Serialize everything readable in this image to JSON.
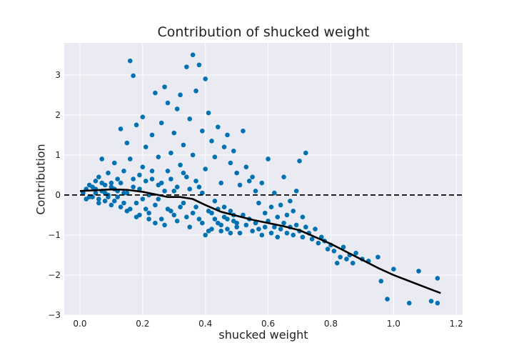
{
  "chart_data": {
    "type": "scatter",
    "title": "Contribution of shucked weight",
    "xlabel": "shucked weight",
    "ylabel": "Contribution",
    "xlim": [
      -0.05,
      1.22
    ],
    "ylim": [
      -3.0,
      3.8
    ],
    "xticks": [
      "0.0",
      "0.2",
      "0.4",
      "0.6",
      "0.8",
      "1.0",
      "1.2"
    ],
    "yticks": [
      "−3",
      "−2",
      "−1",
      "0",
      "1",
      "2",
      "3"
    ],
    "grid": true,
    "background": "#eaeaf2",
    "point_color": "#0072b2",
    "reference_line": {
      "y": 0,
      "style": "dashed",
      "color": "#000000"
    },
    "trend_line": {
      "color": "#000000",
      "x": [
        0.0,
        0.05,
        0.1,
        0.15,
        0.2,
        0.25,
        0.28,
        0.32,
        0.36,
        0.4,
        0.45,
        0.5,
        0.55,
        0.6,
        0.65,
        0.7,
        0.75,
        0.8,
        0.85,
        0.9,
        0.95,
        1.0,
        1.05,
        1.1,
        1.15
      ],
      "y": [
        0.1,
        0.12,
        0.14,
        0.13,
        0.08,
        0.0,
        -0.05,
        -0.05,
        -0.1,
        -0.25,
        -0.42,
        -0.52,
        -0.62,
        -0.7,
        -0.78,
        -0.88,
        -1.05,
        -1.22,
        -1.42,
        -1.62,
        -1.82,
        -2.0,
        -2.15,
        -2.3,
        -2.45
      ]
    },
    "series": [
      {
        "values": [
          [
            0.02,
            0.15
          ],
          [
            0.03,
            -0.05
          ],
          [
            0.04,
            0.2
          ],
          [
            0.05,
            0.35
          ],
          [
            0.05,
            0.05
          ],
          [
            0.06,
            -0.1
          ],
          [
            0.06,
            0.45
          ],
          [
            0.07,
            0.9
          ],
          [
            0.07,
            0.1
          ],
          [
            0.08,
            0.25
          ],
          [
            0.08,
            -0.15
          ],
          [
            0.09,
            0.55
          ],
          [
            0.09,
            0.0
          ],
          [
            0.1,
            0.3
          ],
          [
            0.1,
            -0.25
          ],
          [
            0.11,
            0.8
          ],
          [
            0.11,
            0.15
          ],
          [
            0.12,
            -0.05
          ],
          [
            0.12,
            0.4
          ],
          [
            0.13,
            1.65
          ],
          [
            0.13,
            -0.3
          ],
          [
            0.14,
            0.6
          ],
          [
            0.14,
            0.05
          ],
          [
            0.15,
            1.3
          ],
          [
            0.15,
            -0.4
          ],
          [
            0.16,
            3.35
          ],
          [
            0.16,
            0.9
          ],
          [
            0.17,
            2.98
          ],
          [
            0.17,
            0.2
          ],
          [
            0.18,
            1.75
          ],
          [
            0.18,
            -0.2
          ],
          [
            0.19,
            0.5
          ],
          [
            0.19,
            -0.5
          ],
          [
            0.2,
            1.95
          ],
          [
            0.2,
            0.7
          ],
          [
            0.21,
            1.2
          ],
          [
            0.21,
            -0.35
          ],
          [
            0.22,
            0.0
          ],
          [
            0.22,
            -0.6
          ],
          [
            0.23,
            1.5
          ],
          [
            0.23,
            0.4
          ],
          [
            0.24,
            -0.7
          ],
          [
            0.24,
            2.55
          ],
          [
            0.25,
            0.95
          ],
          [
            0.25,
            -0.1
          ],
          [
            0.26,
            1.8
          ],
          [
            0.26,
            0.3
          ],
          [
            0.27,
            2.7
          ],
          [
            0.27,
            -0.75
          ],
          [
            0.28,
            0.6
          ],
          [
            0.28,
            2.3
          ],
          [
            0.29,
            1.05
          ],
          [
            0.29,
            -0.4
          ],
          [
            0.3,
            1.55
          ],
          [
            0.3,
            0.1
          ],
          [
            0.31,
            2.15
          ],
          [
            0.31,
            -0.65
          ],
          [
            0.32,
            2.5
          ],
          [
            0.32,
            0.75
          ],
          [
            0.33,
            1.25
          ],
          [
            0.33,
            -0.2
          ],
          [
            0.34,
            3.2
          ],
          [
            0.34,
            0.45
          ],
          [
            0.35,
            1.9
          ],
          [
            0.35,
            -0.8
          ],
          [
            0.36,
            3.5
          ],
          [
            0.36,
            1.0
          ],
          [
            0.37,
            2.6
          ],
          [
            0.37,
            -0.3
          ],
          [
            0.38,
            3.25
          ],
          [
            0.38,
            0.2
          ],
          [
            0.39,
            1.6
          ],
          [
            0.39,
            -0.7
          ],
          [
            0.4,
            2.9
          ],
          [
            0.4,
            0.65
          ],
          [
            0.41,
            2.05
          ],
          [
            0.41,
            -0.9
          ],
          [
            0.42,
            1.35
          ],
          [
            0.42,
            -0.45
          ],
          [
            0.43,
            0.95
          ],
          [
            0.43,
            -0.6
          ],
          [
            0.44,
            1.7
          ],
          [
            0.44,
            -0.35
          ],
          [
            0.45,
            0.3
          ],
          [
            0.45,
            -0.75
          ],
          [
            0.46,
            1.2
          ],
          [
            0.46,
            -0.55
          ],
          [
            0.47,
            1.5
          ],
          [
            0.47,
            -0.85
          ],
          [
            0.48,
            0.8
          ],
          [
            0.48,
            -0.4
          ],
          [
            0.49,
            1.1
          ],
          [
            0.49,
            -0.65
          ],
          [
            0.5,
            0.55
          ],
          [
            0.5,
            -0.8
          ],
          [
            0.51,
            0.25
          ],
          [
            0.51,
            -0.95
          ],
          [
            0.52,
            1.6
          ],
          [
            0.52,
            -0.5
          ],
          [
            0.53,
            0.7
          ],
          [
            0.53,
            -0.75
          ],
          [
            0.54,
            0.35
          ],
          [
            0.54,
            -0.6
          ],
          [
            0.55,
            0.45
          ],
          [
            0.55,
            -0.9
          ],
          [
            0.56,
            0.1
          ],
          [
            0.56,
            -0.7
          ],
          [
            0.57,
            -0.2
          ],
          [
            0.57,
            -0.85
          ],
          [
            0.58,
            0.3
          ],
          [
            0.58,
            -1.0
          ],
          [
            0.59,
            -0.45
          ],
          [
            0.59,
            -0.8
          ],
          [
            0.6,
            0.9
          ],
          [
            0.6,
            -0.65
          ],
          [
            0.61,
            -0.3
          ],
          [
            0.61,
            -0.95
          ],
          [
            0.62,
            0.05
          ],
          [
            0.62,
            -0.8
          ],
          [
            0.63,
            -0.55
          ],
          [
            0.63,
            -1.05
          ],
          [
            0.64,
            -0.25
          ],
          [
            0.64,
            -0.85
          ],
          [
            0.65,
            0.45
          ],
          [
            0.65,
            -0.7
          ],
          [
            0.66,
            -0.5
          ],
          [
            0.66,
            -0.95
          ],
          [
            0.67,
            -0.15
          ],
          [
            0.67,
            -0.8
          ],
          [
            0.68,
            -0.4
          ],
          [
            0.68,
            -1.0
          ],
          [
            0.69,
            0.1
          ],
          [
            0.69,
            -0.75
          ],
          [
            0.7,
            0.85
          ],
          [
            0.7,
            -0.9
          ],
          [
            0.71,
            -0.55
          ],
          [
            0.71,
            -1.05
          ],
          [
            0.72,
            1.05
          ],
          [
            0.72,
            -0.8
          ],
          [
            0.73,
            -0.95
          ],
          [
            0.74,
            -1.1
          ],
          [
            0.75,
            -0.85
          ],
          [
            0.76,
            -1.2
          ],
          [
            0.77,
            -1.05
          ],
          [
            0.78,
            -1.15
          ],
          [
            0.79,
            -1.35
          ],
          [
            0.8,
            -1.25
          ],
          [
            0.81,
            -1.4
          ],
          [
            0.82,
            -1.7
          ],
          [
            0.83,
            -1.55
          ],
          [
            0.84,
            -1.3
          ],
          [
            0.85,
            -1.6
          ],
          [
            0.86,
            -1.5
          ],
          [
            0.87,
            -1.7
          ],
          [
            0.88,
            -1.45
          ],
          [
            0.9,
            -1.6
          ],
          [
            0.92,
            -1.65
          ],
          [
            0.95,
            -1.55
          ],
          [
            0.96,
            -2.15
          ],
          [
            0.98,
            -2.6
          ],
          [
            1.0,
            -1.85
          ],
          [
            1.05,
            -2.7
          ],
          [
            1.08,
            -1.9
          ],
          [
            1.12,
            -2.65
          ],
          [
            1.14,
            -2.08
          ],
          [
            1.14,
            -2.7
          ],
          [
            0.01,
            0.05
          ],
          [
            0.02,
            -0.1
          ],
          [
            0.03,
            0.25
          ],
          [
            0.04,
            -0.05
          ],
          [
            0.05,
            0.15
          ],
          [
            0.06,
            -0.2
          ],
          [
            0.07,
            0.3
          ],
          [
            0.08,
            0.05
          ],
          [
            0.09,
            -0.05
          ],
          [
            0.1,
            0.2
          ],
          [
            0.11,
            -0.15
          ],
          [
            0.12,
            0.1
          ],
          [
            0.13,
            0.3
          ],
          [
            0.14,
            -0.2
          ],
          [
            0.15,
            0.05
          ],
          [
            0.16,
            -0.35
          ],
          [
            0.17,
            0.4
          ],
          [
            0.18,
            -0.55
          ],
          [
            0.19,
            0.15
          ],
          [
            0.2,
            -0.1
          ],
          [
            0.21,
            0.35
          ],
          [
            0.22,
            -0.45
          ],
          [
            0.23,
            0.6
          ],
          [
            0.24,
            -0.25
          ],
          [
            0.25,
            0.25
          ],
          [
            0.26,
            -0.6
          ],
          [
            0.27,
            0.1
          ],
          [
            0.28,
            -0.35
          ],
          [
            0.29,
            0.4
          ],
          [
            0.3,
            -0.5
          ],
          [
            0.31,
            0.2
          ],
          [
            0.32,
            -0.3
          ],
          [
            0.33,
            0.55
          ],
          [
            0.34,
            -0.55
          ],
          [
            0.35,
            0.15
          ],
          [
            0.36,
            -0.45
          ],
          [
            0.37,
            0.35
          ],
          [
            0.38,
            -0.6
          ],
          [
            0.39,
            0.05
          ],
          [
            0.4,
            -1.0
          ],
          [
            0.41,
            -0.4
          ],
          [
            0.42,
            -0.85
          ],
          [
            0.43,
            -0.15
          ],
          [
            0.44,
            -0.7
          ],
          [
            0.45,
            -0.9
          ],
          [
            0.46,
            -0.3
          ],
          [
            0.47,
            -0.6
          ],
          [
            0.48,
            -0.95
          ],
          [
            0.49,
            -0.5
          ],
          [
            0.5,
            -0.7
          ]
        ]
      }
    ]
  }
}
